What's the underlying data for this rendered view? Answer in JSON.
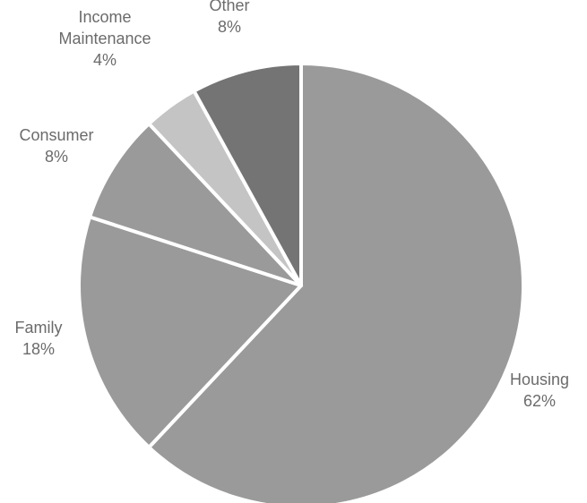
{
  "chart_data": {
    "type": "pie",
    "title": "",
    "start_angle_deg": 0,
    "direction": "clockwise",
    "slices": [
      {
        "category": "Housing",
        "value": 62,
        "label": "62%",
        "color": "#9a9a9a"
      },
      {
        "category": "Family",
        "value": 18,
        "label": "18%",
        "color": "#9a9a9a"
      },
      {
        "category": "Consumer",
        "value": 8,
        "label": "8%",
        "color": "#9a9a9a"
      },
      {
        "category": "Income Maintenance",
        "value": 4,
        "label": "4%",
        "color": "#c4c4c4"
      },
      {
        "category": "Other",
        "value": 8,
        "label": "8%",
        "color": "#747474"
      }
    ],
    "label_color": "#6b6b6b",
    "separator_color": "#ffffff"
  }
}
